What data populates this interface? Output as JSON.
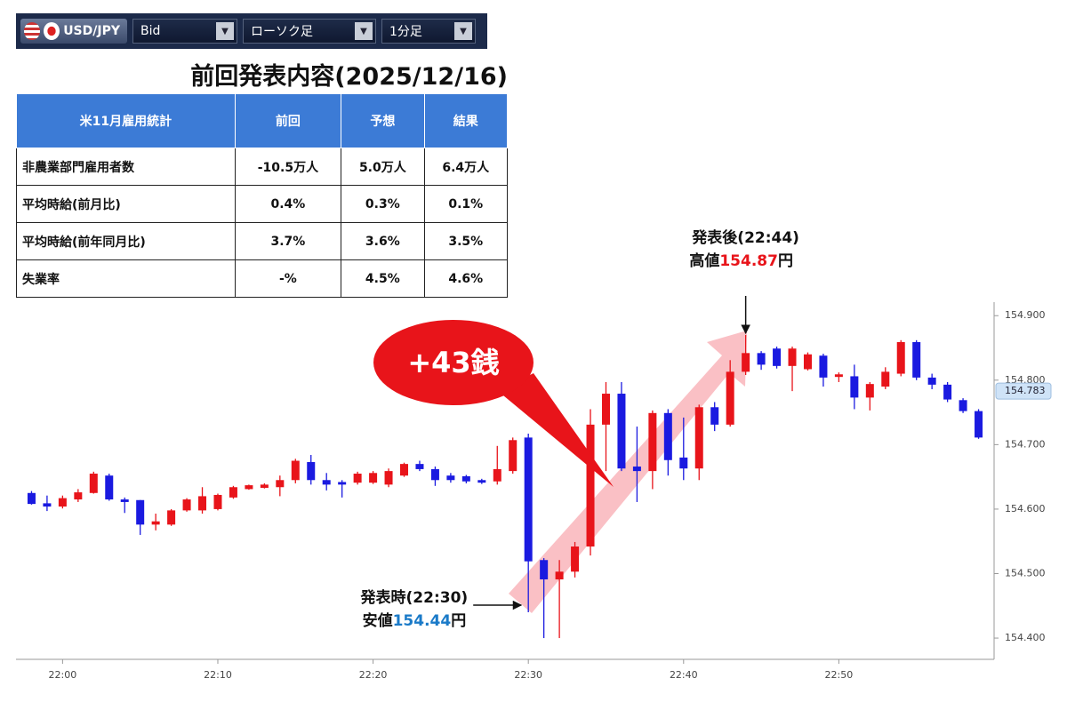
{
  "toolbar": {
    "pair": "USD/JPY",
    "price_type": "Bid",
    "chart_style": "ローソク足",
    "timeframe": "1分足"
  },
  "table": {
    "title": "前回発表内容(2025/12/16)",
    "header": [
      "米11月雇用統計",
      "前回",
      "予想",
      "結果"
    ],
    "rows": [
      [
        "非農業部門雇用者数",
        "-10.5万人",
        "5.0万人",
        "6.4万人"
      ],
      [
        "平均時給(前月比)",
        "0.4%",
        "0.3%",
        "0.1%"
      ],
      [
        "平均時給(前年同月比)",
        "3.7%",
        "3.6%",
        "3.5%"
      ],
      [
        "失業率",
        "-%",
        "4.5%",
        "4.6%"
      ]
    ]
  },
  "chart_data": {
    "type": "candlestick",
    "x": [
      "21:58",
      "21:59",
      "22:00",
      "22:01",
      "22:02",
      "22:03",
      "22:04",
      "22:05",
      "22:06",
      "22:07",
      "22:08",
      "22:09",
      "22:10",
      "22:11",
      "22:12",
      "22:13",
      "22:14",
      "22:15",
      "22:16",
      "22:17",
      "22:18",
      "22:19",
      "22:20",
      "22:21",
      "22:22",
      "22:23",
      "22:24",
      "22:25",
      "22:26",
      "22:27",
      "22:28",
      "22:29",
      "22:30",
      "22:31",
      "22:32",
      "22:33",
      "22:34",
      "22:35",
      "22:36",
      "22:37",
      "22:38",
      "22:39",
      "22:40",
      "22:41",
      "22:42",
      "22:43",
      "22:44",
      "22:45",
      "22:46",
      "22:47",
      "22:48",
      "22:49",
      "22:50",
      "22:51",
      "22:52",
      "22:53",
      "22:54",
      "22:55",
      "22:56",
      "22:57",
      "22:58",
      "22:59"
    ],
    "open": [
      154.625,
      154.609,
      154.604,
      154.615,
      154.625,
      154.652,
      154.615,
      154.614,
      154.576,
      154.576,
      154.598,
      154.598,
      154.6,
      154.618,
      154.631,
      154.633,
      154.634,
      154.645,
      154.673,
      154.645,
      154.642,
      154.641,
      154.641,
      154.638,
      154.652,
      154.67,
      154.662,
      154.652,
      154.651,
      154.645,
      154.643,
      154.659,
      154.711,
      154.521,
      154.491,
      154.503,
      154.542,
      154.731,
      154.779,
      154.666,
      154.659,
      154.749,
      154.68,
      154.663,
      154.758,
      154.731,
      154.813,
      154.842,
      154.849,
      154.822,
      154.817,
      154.838,
      154.805,
      154.806,
      154.773,
      154.79,
      154.81,
      154.859,
      154.804,
      154.793,
      154.769,
      154.752
    ],
    "high": [
      154.628,
      154.621,
      154.621,
      154.631,
      154.658,
      154.655,
      154.618,
      154.614,
      154.593,
      154.6,
      154.617,
      154.634,
      154.624,
      154.636,
      154.638,
      154.64,
      154.652,
      154.678,
      154.684,
      154.656,
      154.645,
      154.658,
      154.659,
      154.663,
      154.672,
      154.675,
      154.666,
      154.656,
      154.653,
      154.647,
      154.698,
      154.711,
      154.717,
      154.524,
      154.521,
      154.549,
      154.755,
      154.797,
      154.797,
      154.728,
      154.753,
      154.755,
      154.742,
      154.762,
      154.766,
      154.831,
      154.87,
      154.845,
      154.852,
      154.852,
      154.843,
      154.841,
      154.812,
      154.824,
      154.797,
      154.82,
      154.862,
      154.862,
      154.81,
      154.797,
      154.772,
      154.755
    ],
    "low": [
      154.607,
      154.597,
      154.601,
      154.611,
      154.624,
      154.613,
      154.594,
      154.56,
      154.567,
      154.574,
      154.596,
      154.593,
      154.598,
      154.616,
      154.63,
      154.632,
      154.62,
      154.64,
      154.638,
      154.629,
      154.618,
      154.638,
      154.639,
      154.634,
      154.65,
      154.659,
      154.636,
      154.641,
      154.64,
      154.639,
      154.638,
      154.655,
      154.44,
      154.4,
      154.4,
      154.494,
      154.528,
      154.659,
      154.659,
      154.611,
      154.631,
      154.652,
      154.645,
      154.645,
      154.721,
      154.728,
      154.808,
      154.816,
      154.818,
      154.783,
      154.815,
      154.79,
      154.797,
      154.755,
      154.753,
      154.786,
      154.806,
      154.8,
      154.786,
      154.766,
      154.749,
      154.709
    ],
    "close": [
      154.608,
      154.604,
      154.617,
      154.626,
      154.655,
      154.615,
      154.611,
      154.576,
      154.581,
      154.598,
      154.615,
      154.62,
      154.622,
      154.634,
      154.637,
      154.638,
      154.645,
      154.675,
      154.645,
      154.638,
      154.638,
      154.655,
      154.656,
      154.659,
      154.67,
      154.662,
      154.645,
      154.645,
      154.643,
      154.641,
      154.662,
      154.707,
      154.519,
      154.491,
      154.503,
      154.542,
      154.731,
      154.779,
      154.663,
      154.659,
      154.749,
      154.676,
      154.663,
      154.758,
      154.731,
      154.813,
      154.842,
      154.824,
      154.822,
      154.849,
      154.84,
      154.804,
      154.809,
      154.773,
      154.794,
      154.813,
      154.859,
      154.804,
      154.793,
      154.77,
      154.752,
      154.711
    ],
    "up_color": "#e8141a",
    "down_color": "#1a1ae0",
    "xlim": [
      "21:57",
      "23:00"
    ],
    "xticks": [
      "22:00",
      "22:10",
      "22:20",
      "22:30",
      "22:40",
      "22:50"
    ],
    "ylim": [
      154.367,
      154.921
    ],
    "yticks": [
      {
        "value": 154.4,
        "label": "154.400"
      },
      {
        "value": 154.5,
        "label": "154.500"
      },
      {
        "value": 154.6,
        "label": "154.600"
      },
      {
        "value": 154.7,
        "label": "154.700"
      },
      {
        "value": 154.8,
        "label": "154.800"
      },
      {
        "value": 154.9,
        "label": "154.900"
      }
    ],
    "last_price": 154.783,
    "callout": "+43銭",
    "annotations": [
      {
        "time_label": "発表後(22:44)",
        "prefix": "高値",
        "value": 154.87,
        "suffix": "円",
        "at": "22:44",
        "color": "#e8141a"
      },
      {
        "time_label": "発表時(22:30)",
        "prefix": "安値",
        "value": 154.44,
        "suffix": "円",
        "at": "22:30",
        "color": "#1a7ac8"
      }
    ]
  }
}
